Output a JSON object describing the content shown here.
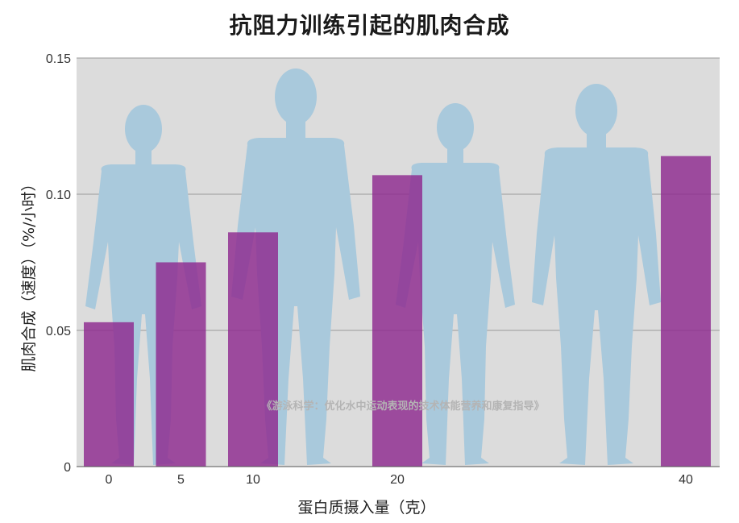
{
  "chart_data": {
    "type": "bar",
    "title": "抗阻力训练引起的肌肉合成",
    "xlabel": "蛋白质摄入量（克）",
    "ylabel": "肌肉合成（速度）（%/小时）",
    "x": [
      0,
      5,
      10,
      20,
      40
    ],
    "values": [
      0.053,
      0.075,
      0.086,
      0.107,
      0.114
    ],
    "x_tick_labels": [
      "0",
      "5",
      "10",
      "20",
      "40"
    ],
    "y_ticks": [
      0,
      0.05,
      0.1,
      0.15
    ],
    "y_tick_labels": [
      "0",
      "0.05",
      "0.10",
      "0.15"
    ],
    "ylim": [
      0,
      0.15
    ],
    "grid": true,
    "bar_color": "#8e2a8f",
    "background_color": "#dcdcdc",
    "figure_color": "#a9c9dc",
    "watermark": "《游泳科学：优化水中运动表现的技术体能营养和康复指导》"
  }
}
